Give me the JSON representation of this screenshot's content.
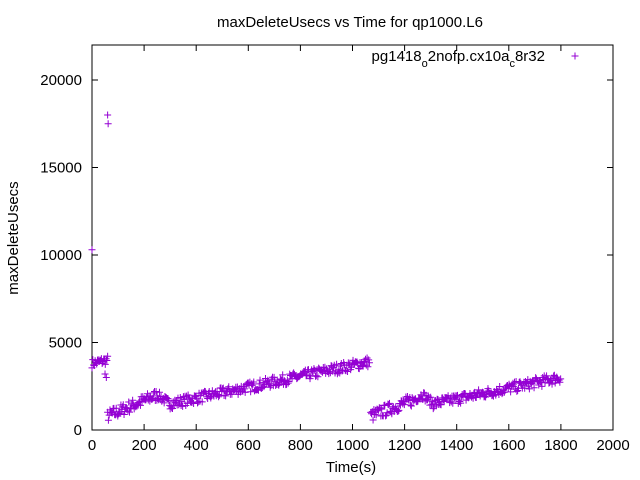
{
  "chart_data": {
    "type": "scatter",
    "title": "maxDeleteUsecs vs Time for qp1000.L6",
    "xlabel": "Time(s)",
    "ylabel": "maxDeleteUsecs",
    "xlim": [
      0,
      2000
    ],
    "ylim": [
      0,
      22000
    ],
    "xticks": [
      "0",
      "200",
      "400",
      "600",
      "800",
      "1000",
      "1200",
      "1400",
      "1600",
      "1800",
      "2000"
    ],
    "yticks": [
      "0",
      "5000",
      "10000",
      "15000",
      "20000"
    ],
    "grid": false,
    "legend_position": "top-right",
    "marker": "+",
    "color": "#9400d3",
    "series": [
      {
        "legend_main": "pg1418",
        "legend_sub1": "o",
        "legend_mid": "2nofp.cx10a",
        "legend_sub2": "c",
        "legend_end": "8r32",
        "segments": [
          {
            "x_start": 0,
            "x_end": 60,
            "y_start": 3800,
            "y_end": 4000,
            "spread": 250,
            "step": 3
          },
          {
            "x_start": 60,
            "x_end": 250,
            "y_start": 800,
            "y_end": 2000,
            "spread": 350,
            "step": 3
          },
          {
            "x_start": 250,
            "x_end": 300,
            "y_start": 2000,
            "y_end": 1500,
            "spread": 250,
            "step": 3
          },
          {
            "x_start": 300,
            "x_end": 1065,
            "y_start": 1500,
            "y_end": 3900,
            "spread": 300,
            "step": 3
          },
          {
            "x_start": 1070,
            "x_end": 1230,
            "y_start": 800,
            "y_end": 1700,
            "spread": 350,
            "step": 3
          },
          {
            "x_start": 1230,
            "x_end": 1270,
            "y_start": 1700,
            "y_end": 2000,
            "spread": 250,
            "step": 3
          },
          {
            "x_start": 1270,
            "x_end": 1310,
            "y_start": 2000,
            "y_end": 1500,
            "spread": 250,
            "step": 3
          },
          {
            "x_start": 1310,
            "x_end": 1800,
            "y_start": 1500,
            "y_end": 3000,
            "spread": 300,
            "step": 3
          }
        ],
        "outliers": [
          {
            "x": 0,
            "y": 10300
          },
          {
            "x": 60,
            "y": 18000
          },
          {
            "x": 62,
            "y": 17500
          },
          {
            "x": 50,
            "y": 3200
          },
          {
            "x": 55,
            "y": 3000
          }
        ]
      }
    ]
  }
}
